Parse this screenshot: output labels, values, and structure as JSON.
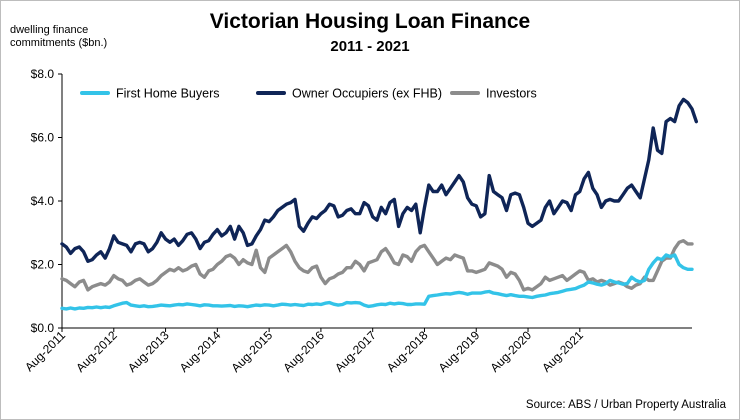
{
  "chart_data": {
    "type": "line",
    "title": "Victorian Housing Loan Finance",
    "subtitle": "2011 - 2021",
    "ylabel": "dwelling finance commitments ($bn.)",
    "source": "Source: ABS / Urban Property Australia",
    "ylim": [
      0,
      8
    ],
    "y_ticks": [
      "$0.0",
      "$2.0",
      "$4.0",
      "$6.0",
      "$8.0"
    ],
    "x_tick_labels": [
      "Aug-2011",
      "Aug-2012",
      "Aug-2013",
      "Aug-2014",
      "Aug-2015",
      "Aug-2016",
      "Aug-2017",
      "Aug-2018",
      "Aug-2019",
      "Aug-2020",
      "Aug-2021"
    ],
    "x_start": "Aug-2011",
    "x_end": "Aug-2021",
    "frequency": "monthly",
    "grid": false,
    "legend_position": "top",
    "series": [
      {
        "name": "First Home Buyers",
        "color": "#33c3e8",
        "values": [
          0.62,
          0.6,
          0.63,
          0.6,
          0.63,
          0.62,
          0.65,
          0.64,
          0.66,
          0.64,
          0.66,
          0.65,
          0.7,
          0.74,
          0.78,
          0.8,
          0.72,
          0.7,
          0.68,
          0.7,
          0.67,
          0.68,
          0.7,
          0.72,
          0.71,
          0.7,
          0.72,
          0.74,
          0.73,
          0.76,
          0.74,
          0.72,
          0.7,
          0.73,
          0.72,
          0.7,
          0.7,
          0.69,
          0.7,
          0.71,
          0.68,
          0.7,
          0.69,
          0.67,
          0.7,
          0.72,
          0.71,
          0.73,
          0.72,
          0.7,
          0.72,
          0.75,
          0.74,
          0.72,
          0.74,
          0.72,
          0.71,
          0.75,
          0.74,
          0.76,
          0.74,
          0.78,
          0.8,
          0.75,
          0.72,
          0.74,
          0.8,
          0.79,
          0.8,
          0.79,
          0.72,
          0.68,
          0.7,
          0.73,
          0.75,
          0.74,
          0.78,
          0.76,
          0.78,
          0.77,
          0.74,
          0.74,
          0.76,
          0.76,
          0.75,
          1.0,
          1.02,
          1.04,
          1.06,
          1.08,
          1.07,
          1.1,
          1.12,
          1.1,
          1.06,
          1.1,
          1.1,
          1.1,
          1.13,
          1.15,
          1.1,
          1.08,
          1.05,
          1.02,
          1.05,
          1.02,
          1.0,
          1.0,
          0.98,
          0.96,
          1.0,
          1.02,
          1.04,
          1.08,
          1.1,
          1.12,
          1.16,
          1.2,
          1.22,
          1.24,
          1.3,
          1.35,
          1.45,
          1.42,
          1.38,
          1.35,
          1.4,
          1.5,
          1.45,
          1.42,
          1.38,
          1.4,
          1.6,
          1.5,
          1.45,
          1.5,
          1.85,
          2.05,
          2.2,
          2.15,
          2.3,
          2.25,
          2.3,
          2.0,
          1.9,
          1.85,
          1.85
        ]
      },
      {
        "name": "Owner Occupiers (ex FHB)",
        "color": "#0f2557",
        "values": [
          2.65,
          2.55,
          2.35,
          2.5,
          2.55,
          2.4,
          2.1,
          2.15,
          2.3,
          2.4,
          2.2,
          2.5,
          2.9,
          2.7,
          2.65,
          2.6,
          2.4,
          2.65,
          2.7,
          2.65,
          2.4,
          2.5,
          2.7,
          3.0,
          2.8,
          2.7,
          2.8,
          2.6,
          2.75,
          2.95,
          3.0,
          2.8,
          2.5,
          2.7,
          2.75,
          2.95,
          3.1,
          2.9,
          3.0,
          3.2,
          2.8,
          3.2,
          3.0,
          2.6,
          2.65,
          2.9,
          3.1,
          3.4,
          3.35,
          3.5,
          3.7,
          3.8,
          3.9,
          3.95,
          4.05,
          3.2,
          3.05,
          3.3,
          3.5,
          3.45,
          3.6,
          3.7,
          3.9,
          3.85,
          3.5,
          3.55,
          3.7,
          3.75,
          3.6,
          3.6,
          3.95,
          3.85,
          3.5,
          3.4,
          3.8,
          3.6,
          3.95,
          4.05,
          3.2,
          3.6,
          3.8,
          3.7,
          3.9,
          3.0,
          3.8,
          4.5,
          4.3,
          4.3,
          4.5,
          4.2,
          4.4,
          4.6,
          4.8,
          4.6,
          4.1,
          3.9,
          3.85,
          3.5,
          3.6,
          4.8,
          4.3,
          4.2,
          4.1,
          3.7,
          4.2,
          4.25,
          4.2,
          3.8,
          3.3,
          3.2,
          3.3,
          3.4,
          3.8,
          4.0,
          3.6,
          3.8,
          4.0,
          3.95,
          3.7,
          4.2,
          4.3,
          4.7,
          4.9,
          4.4,
          4.2,
          3.8,
          4.0,
          4.05,
          4.0,
          4.0,
          4.2,
          4.4,
          4.5,
          4.3,
          4.1,
          4.7,
          5.3,
          6.3,
          5.6,
          5.5,
          6.5,
          6.6,
          6.5,
          7.0,
          7.2,
          7.1,
          6.9,
          6.5
        ]
      },
      {
        "name": "Investors",
        "color": "#8c8c8c",
        "values": [
          1.55,
          1.5,
          1.4,
          1.3,
          1.45,
          1.5,
          1.2,
          1.3,
          1.35,
          1.4,
          1.35,
          1.45,
          1.65,
          1.55,
          1.5,
          1.35,
          1.4,
          1.5,
          1.55,
          1.45,
          1.35,
          1.4,
          1.5,
          1.65,
          1.75,
          1.85,
          1.8,
          1.9,
          1.8,
          1.85,
          1.95,
          2.0,
          1.7,
          1.6,
          1.8,
          1.85,
          2.0,
          2.1,
          2.25,
          2.3,
          2.2,
          2.0,
          2.15,
          2.05,
          2.0,
          2.45,
          1.9,
          1.75,
          2.2,
          2.3,
          2.4,
          2.5,
          2.6,
          2.4,
          2.1,
          1.9,
          1.8,
          1.75,
          1.9,
          1.95,
          1.6,
          1.4,
          1.55,
          1.6,
          1.7,
          1.75,
          1.9,
          1.9,
          2.1,
          2.0,
          1.8,
          2.05,
          2.1,
          2.15,
          2.4,
          2.5,
          2.3,
          2.05,
          2.0,
          2.3,
          2.25,
          2.1,
          2.4,
          2.55,
          2.6,
          2.4,
          2.2,
          2.0,
          2.1,
          2.2,
          2.15,
          2.3,
          2.25,
          2.2,
          1.8,
          1.8,
          1.75,
          1.8,
          1.85,
          2.05,
          2.0,
          1.95,
          1.85,
          1.6,
          1.75,
          1.7,
          1.5,
          1.2,
          1.25,
          1.2,
          1.3,
          1.4,
          1.6,
          1.5,
          1.55,
          1.6,
          1.65,
          1.5,
          1.6,
          1.7,
          1.8,
          1.75,
          1.5,
          1.55,
          1.45,
          1.5,
          1.45,
          1.35,
          1.4,
          1.45,
          1.4,
          1.3,
          1.25,
          1.35,
          1.4,
          1.6,
          1.5,
          1.5,
          1.8,
          2.1,
          2.2,
          2.2,
          2.5,
          2.7,
          2.75,
          2.65,
          2.65
        ]
      }
    ]
  }
}
